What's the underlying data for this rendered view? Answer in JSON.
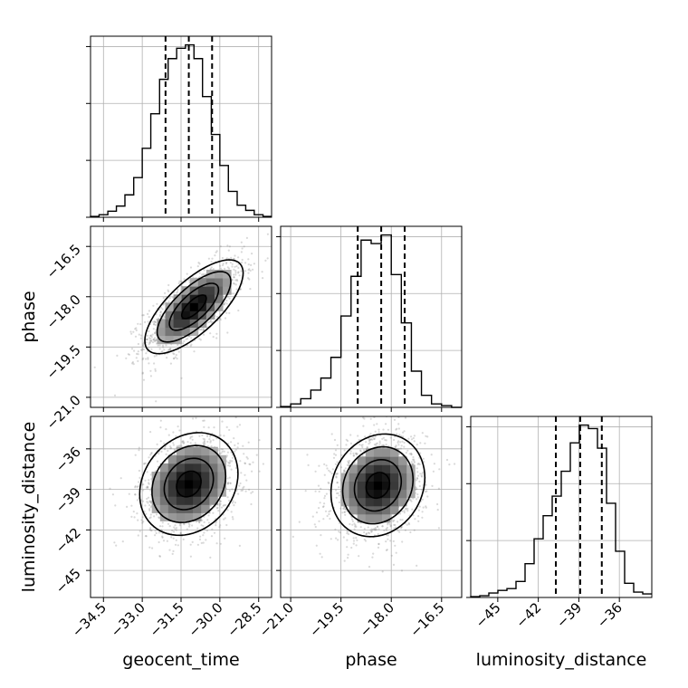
{
  "chart_data": {
    "type": "corner",
    "title": "",
    "parameters": [
      {
        "name": "geocent_time",
        "range": [
          -35.0,
          -28.0
        ],
        "ticks": [
          -34.5,
          -33.0,
          -31.5,
          -30.0,
          -28.5
        ],
        "tick_labels": [
          "−34.5",
          "−33.0",
          "−31.5",
          "−30.0",
          "−28.5"
        ],
        "quantiles": [
          -32.1,
          -31.2,
          -30.3
        ],
        "hist_bins": [
          -35.0,
          -34.67,
          -34.33,
          -34.0,
          -33.67,
          -33.33,
          -33.0,
          -32.67,
          -32.33,
          -32.0,
          -31.67,
          -31.33,
          -31.0,
          -30.67,
          -30.33,
          -30.0,
          -29.67,
          -29.33,
          -29.0,
          -28.67,
          -28.33,
          -28.0
        ],
        "hist_counts": [
          0.005,
          0.015,
          0.035,
          0.065,
          0.13,
          0.23,
          0.4,
          0.6,
          0.8,
          0.92,
          0.98,
          1.0,
          0.92,
          0.7,
          0.48,
          0.3,
          0.15,
          0.07,
          0.04,
          0.015,
          0.005
        ]
      },
      {
        "name": "phase",
        "range": [
          -21.3,
          -15.9
        ],
        "ticks": [
          -21.0,
          -19.5,
          -18.0,
          -16.5
        ],
        "tick_labels": [
          "−21.0",
          "−19.5",
          "−18.0",
          "−16.5"
        ],
        "quantiles": [
          -19.0,
          -18.3,
          -17.6
        ],
        "hist_bins": [
          -21.3,
          -21.0,
          -20.7,
          -20.4,
          -20.1,
          -19.8,
          -19.5,
          -19.2,
          -18.9,
          -18.6,
          -18.3,
          -18.0,
          -17.7,
          -17.4,
          -17.1,
          -16.8,
          -16.5,
          -16.2,
          -15.9
        ],
        "hist_counts": [
          0.005,
          0.02,
          0.05,
          0.1,
          0.17,
          0.29,
          0.53,
          0.76,
          0.97,
          0.95,
          1.0,
          0.77,
          0.49,
          0.21,
          0.07,
          0.02,
          0.01,
          0.0
        ]
      },
      {
        "name": "luminosity_distance",
        "range": [
          -47.0,
          -33.6
        ],
        "ticks": [
          -45,
          -42,
          -39,
          -36
        ],
        "tick_labels": [
          "−45",
          "−42",
          "−39",
          "−36"
        ],
        "quantiles": [
          -40.7,
          -38.9,
          -37.3
        ],
        "hist_bins": [
          -47.0,
          -46.33,
          -45.66,
          -44.99,
          -44.32,
          -43.65,
          -42.98,
          -42.31,
          -41.64,
          -40.97,
          -40.3,
          -39.63,
          -38.96,
          -38.29,
          -37.62,
          -36.95,
          -36.28,
          -35.61,
          -34.94,
          -34.27,
          -33.6
        ],
        "hist_counts": [
          0.005,
          0.01,
          0.025,
          0.04,
          0.05,
          0.09,
          0.19,
          0.33,
          0.46,
          0.57,
          0.71,
          0.87,
          0.97,
          0.95,
          0.84,
          0.53,
          0.26,
          0.08,
          0.03,
          0.02
        ]
      }
    ],
    "pairs": [
      {
        "x": "geocent_time",
        "y": "phase",
        "mean": [
          -31.0,
          -18.3
        ],
        "sd": [
          0.95,
          0.7
        ],
        "corr": 0.72
      },
      {
        "x": "geocent_time",
        "y": "luminosity_distance",
        "mean": [
          -31.2,
          -38.6
        ],
        "sd": [
          0.95,
          1.9
        ],
        "corr": 0.2
      },
      {
        "x": "phase",
        "y": "luminosity_distance",
        "mean": [
          -18.4,
          -38.7
        ],
        "sd": [
          0.7,
          1.9
        ],
        "corr": 0.15
      }
    ],
    "grid": true,
    "legend": "none"
  }
}
